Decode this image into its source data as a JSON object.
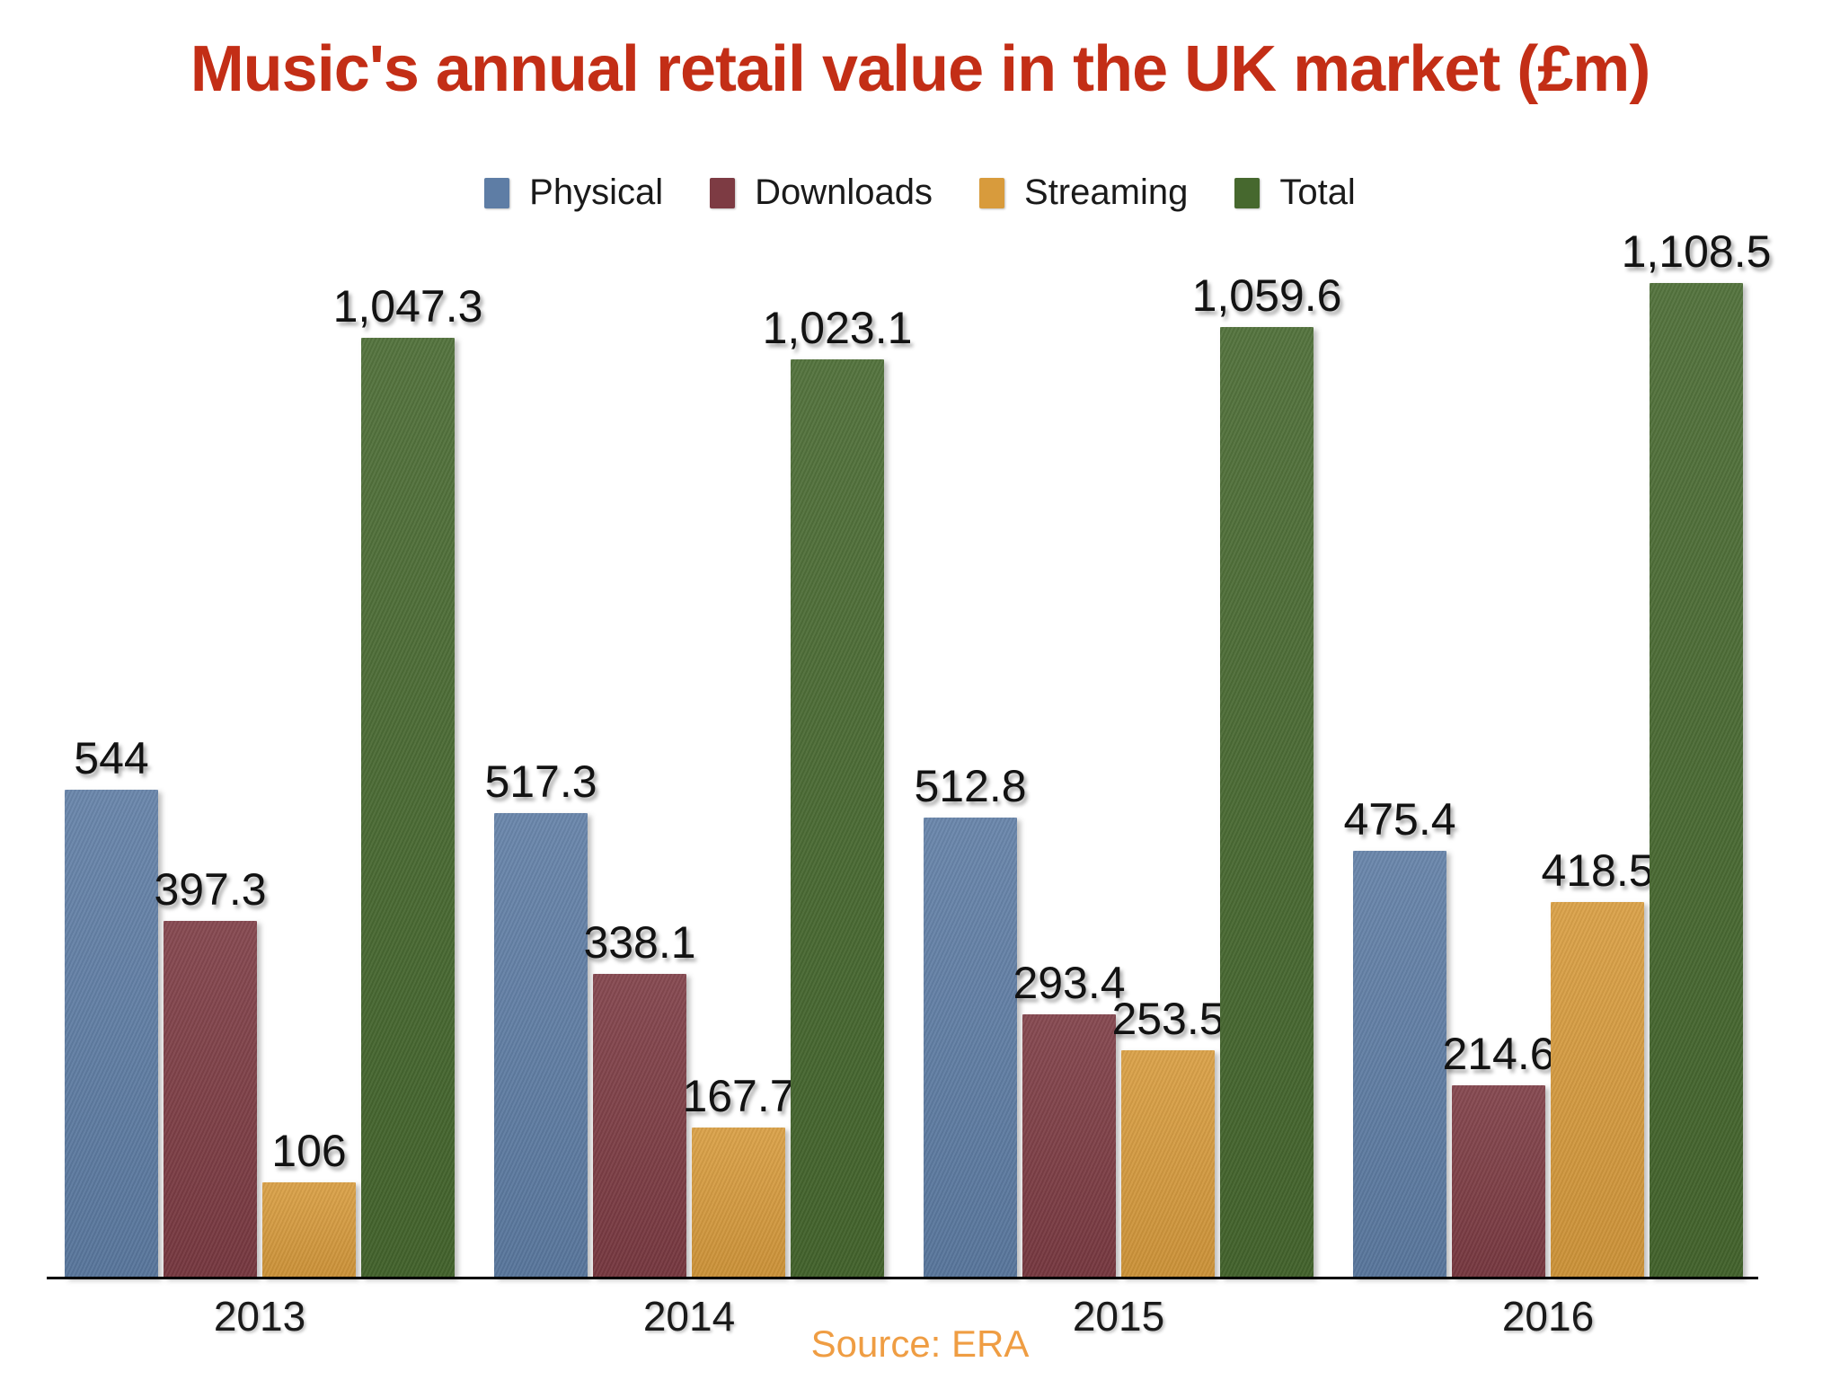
{
  "title": "Music's annual retail value in the UK market (£m)",
  "source_note": "Source: ERA",
  "colors": {
    "title": "#c32e16",
    "source": "#ef9d43",
    "axis": "#000000",
    "data_label": "#121212",
    "x_label": "#1a1a1a",
    "physical": "#5e7da5",
    "downloads": "#7d3b43",
    "streaming": "#d89b3c",
    "total": "#46682e"
  },
  "chart_data": {
    "type": "bar",
    "title": "Music's annual retail value in the UK market (£m)",
    "source": "Source: ERA",
    "categories": [
      "2013",
      "2014",
      "2015",
      "2016"
    ],
    "series": [
      {
        "name": "Physical",
        "color": "#5e7da5",
        "values": [
          544,
          517.3,
          512.8,
          475.4
        ],
        "labels": [
          "544",
          "517.3",
          "512.8",
          "475.4"
        ]
      },
      {
        "name": "Downloads",
        "color": "#7d3b43",
        "values": [
          397.3,
          338.1,
          293.4,
          214.6
        ],
        "labels": [
          "397.3",
          "338.1",
          "293.4",
          "214.6"
        ]
      },
      {
        "name": "Streaming",
        "color": "#d89b3c",
        "values": [
          106,
          167.7,
          253.5,
          418.5
        ],
        "labels": [
          "106",
          "167.7",
          "253.5",
          "418.5"
        ]
      },
      {
        "name": "Total",
        "color": "#46682e",
        "values": [
          1047.3,
          1023.1,
          1059.6,
          1108.5
        ],
        "labels": [
          "1,047.3",
          "1,023.1",
          "1,059.6",
          "1,108.5"
        ]
      }
    ],
    "xlabel": "",
    "ylabel": "",
    "ylim": [
      0,
      1200
    ],
    "grid": false,
    "legend_position": "top",
    "data_labels": true
  }
}
